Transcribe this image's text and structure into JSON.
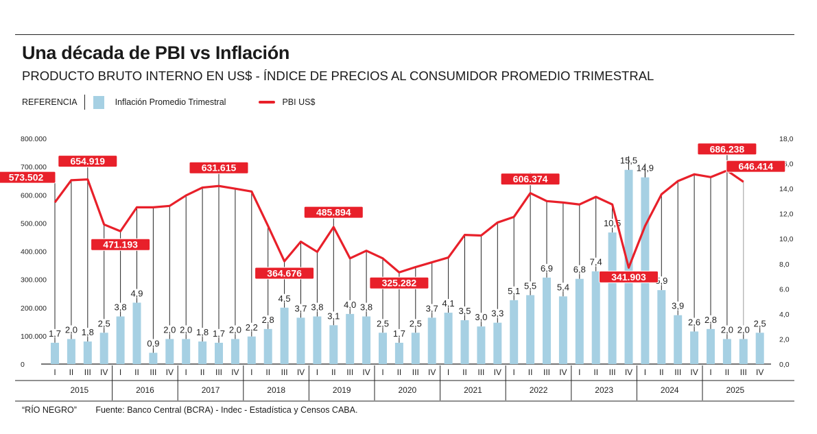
{
  "header": {
    "title": "Una década de PBI vs Inflación",
    "subtitle": "PRODUCTO BRUTO INTERNO EN US$ - ÍNDICE DE PRECIOS AL CONSUMIDOR PROMEDIO TRIMESTRAL"
  },
  "legend": {
    "label": "REFERENCIA",
    "bar_series": "Inflación Promedio Trimestral",
    "line_series": "PBI US$"
  },
  "footer": {
    "credit": "“RÍO NEGRO”",
    "source": "Fuente: Banco Central (BCRA) - Indec - Estadística y Censos CABA."
  },
  "colors": {
    "bar": "#a6d0e3",
    "line": "#e8202a"
  },
  "chart_data": {
    "type": "bar+line",
    "years": [
      "2015",
      "2016",
      "2017",
      "2018",
      "2019",
      "2020",
      "2021",
      "2022",
      "2023",
      "2024",
      "2025"
    ],
    "quarters": [
      "I",
      "II",
      "III",
      "IV"
    ],
    "left_axis": {
      "range": [
        0,
        800000
      ],
      "ticks": [
        "0",
        "100.000",
        "200.000",
        "300.000",
        "400.000",
        "500.000",
        "600.000",
        "700.000",
        "800.000"
      ]
    },
    "right_axis": {
      "range": [
        0,
        18
      ],
      "ticks": [
        "0,0",
        "2,0",
        "4,0",
        "6.0",
        "8,0",
        "10,0",
        "12,0",
        "14,0",
        "16,0",
        "18,0"
      ]
    },
    "series": [
      {
        "name": "Inflación Promedio Trimestral",
        "type": "bar",
        "axis": "right",
        "values": [
          1.7,
          2.0,
          1.8,
          2.5,
          3.8,
          4.9,
          0.9,
          2.0,
          2.0,
          1.8,
          1.7,
          2.0,
          2.2,
          2.8,
          4.5,
          3.7,
          3.8,
          3.1,
          4.0,
          3.8,
          2.5,
          1.7,
          2.5,
          3.7,
          4.1,
          3.5,
          3.0,
          3.3,
          5.1,
          5.5,
          6.9,
          5.4,
          6.8,
          7.4,
          10.5,
          15.5,
          14.9,
          5.9,
          3.9,
          2.6,
          2.8,
          2.0,
          2.0,
          2.5
        ],
        "labels": [
          "1,7",
          "2,0",
          "1,8",
          "2,5",
          "3,8",
          "4,9",
          "0,9",
          "2,0",
          "2,0",
          "1,8",
          "1,7",
          "2,0",
          "2,2",
          "2,8",
          "4,5",
          "3,7",
          "3,8",
          "3,1",
          "4,0",
          "3,8",
          "2,5",
          "1,7",
          "2,5",
          "3,7",
          "4,1",
          "3,5",
          "3,0",
          "3,3",
          "5,1",
          "5,5",
          "6,9",
          "5,4",
          "6,8",
          "7,4",
          "10,5",
          "15,5",
          "14,9",
          "5,9",
          "3,9",
          "2,6",
          "2,8",
          "2,0",
          "2,0",
          "2,5"
        ]
      },
      {
        "name": "PBI US$",
        "type": "line",
        "axis": "left",
        "values": [
          573502,
          652000,
          654919,
          495000,
          471193,
          556000,
          556000,
          561000,
          598000,
          626000,
          631615,
          622000,
          612000,
          490000,
          364676,
          434000,
          398000,
          485894,
          375000,
          402000,
          375000,
          325282,
          344000,
          361000,
          378000,
          458000,
          456000,
          502000,
          522000,
          606374,
          578000,
          573000,
          566000,
          593000,
          566000,
          341903,
          490000,
          602000,
          649000,
          673000,
          663000,
          686238,
          646414,
          null
        ],
        "labels": [
          "573.502",
          null,
          "654.919",
          null,
          "471.193",
          null,
          null,
          null,
          null,
          null,
          "631.615",
          null,
          null,
          null,
          "364.676",
          null,
          null,
          "485.894",
          null,
          null,
          null,
          "325.282",
          null,
          null,
          null,
          null,
          null,
          null,
          null,
          "606.374",
          null,
          null,
          null,
          null,
          null,
          "341.903",
          null,
          null,
          null,
          null,
          null,
          "686.238",
          "646.414",
          null
        ]
      }
    ]
  }
}
